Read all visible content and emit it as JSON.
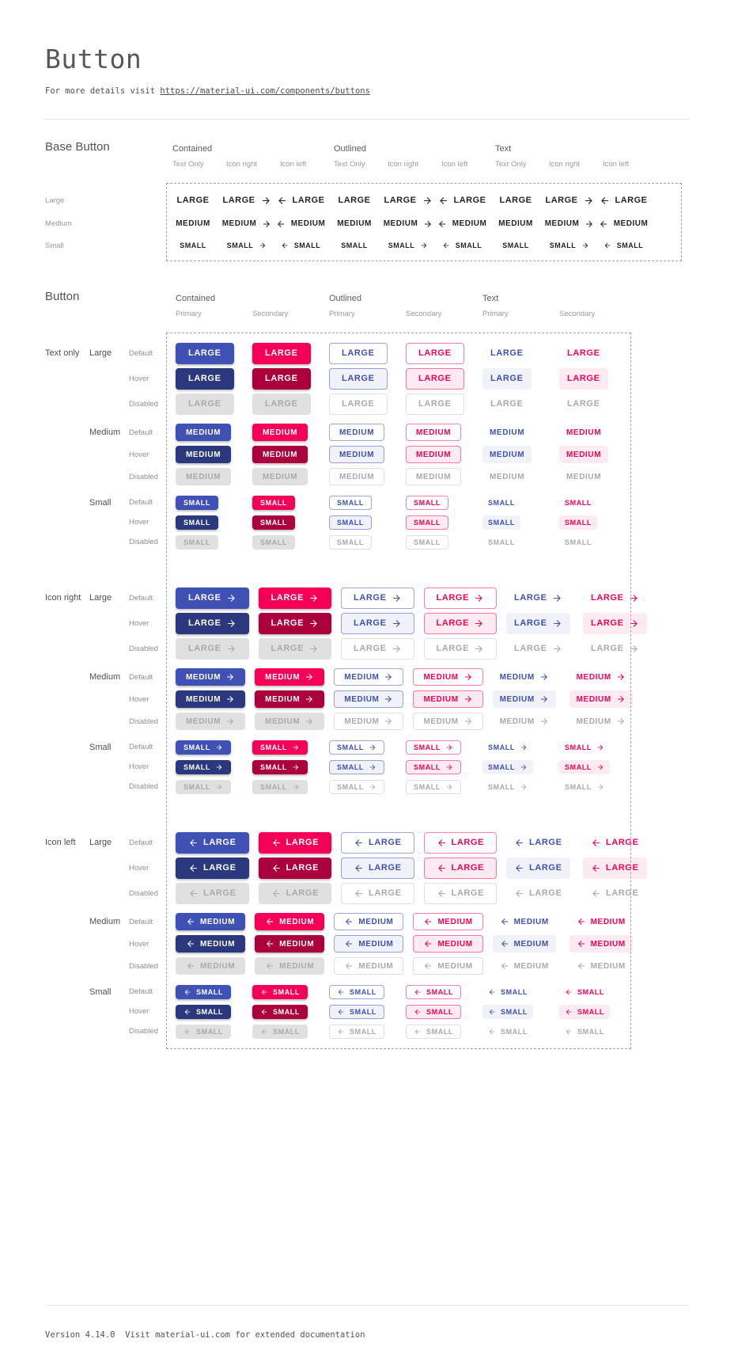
{
  "page": {
    "title": "Button",
    "subtitle_prefix": "For more details visit ",
    "subtitle_link": "https://material-ui.com/components/buttons",
    "footer_text": "Version 4.14.0  Visit material-ui.com for extended documentation"
  },
  "colors": {
    "primary": "#3f51b5",
    "primary_dark": "#2c387e",
    "primary_tint": "rgba(63,81,181,0.08)",
    "primary_border": "rgba(63,81,181,0.5)",
    "secondary": "#f50057",
    "secondary_dark": "#ab003c",
    "secondary_tint": "rgba(245,0,87,0.08)",
    "secondary_border": "rgba(245,0,87,0.5)",
    "disabled_bg": "#e0e0e0",
    "disabled_text": "#a9a9ae",
    "disabled_border": "rgba(0,0,0,0.12)",
    "dashed_border": "#9da2ba"
  },
  "base_section": {
    "heading": "Base Button",
    "column_groups": [
      {
        "label": "Contained"
      },
      {
        "label": "Outlined"
      },
      {
        "label": "Text"
      }
    ],
    "subcolumns": [
      {
        "label": "Text Only",
        "icon": "none"
      },
      {
        "label": "Icon right",
        "icon": "arrow-right"
      },
      {
        "label": "Icon left",
        "icon": "arrow-left"
      }
    ],
    "rows": [
      {
        "label": "Large",
        "size": "large",
        "button_text": "LARGE"
      },
      {
        "label": "Medium",
        "size": "medium",
        "button_text": "MEDIUM"
      },
      {
        "label": "Small",
        "size": "small",
        "button_text": "SMALL"
      }
    ]
  },
  "button_section": {
    "heading": "Button",
    "column_groups": [
      {
        "label": "Contained",
        "variant": "contained",
        "subcolumns": [
          {
            "label": "Primary",
            "color": "primary"
          },
          {
            "label": "Secondary",
            "color": "secondary"
          }
        ]
      },
      {
        "label": "Outlined",
        "variant": "outlined",
        "subcolumns": [
          {
            "label": "Primary",
            "color": "primary"
          },
          {
            "label": "Secondary",
            "color": "secondary"
          }
        ]
      },
      {
        "label": "Text",
        "variant": "text",
        "subcolumns": [
          {
            "label": "Primary",
            "color": "primary"
          },
          {
            "label": "Secondary",
            "color": "secondary"
          }
        ]
      }
    ],
    "row_groups": [
      {
        "label": "Text only",
        "icon": "none"
      },
      {
        "label": "Icon right",
        "icon": "arrow-right"
      },
      {
        "label": "Icon left",
        "icon": "arrow-left"
      }
    ],
    "sizes": [
      {
        "label": "Large",
        "size": "large",
        "button_text": "LARGE"
      },
      {
        "label": "Medium",
        "size": "medium",
        "button_text": "MEDIUM"
      },
      {
        "label": "Small",
        "size": "small",
        "button_text": "SMALL"
      }
    ],
    "states": [
      {
        "label": "Default",
        "state": "default"
      },
      {
        "label": "Hover",
        "state": "hover"
      },
      {
        "label": "Disabled",
        "state": "disabled"
      }
    ]
  }
}
